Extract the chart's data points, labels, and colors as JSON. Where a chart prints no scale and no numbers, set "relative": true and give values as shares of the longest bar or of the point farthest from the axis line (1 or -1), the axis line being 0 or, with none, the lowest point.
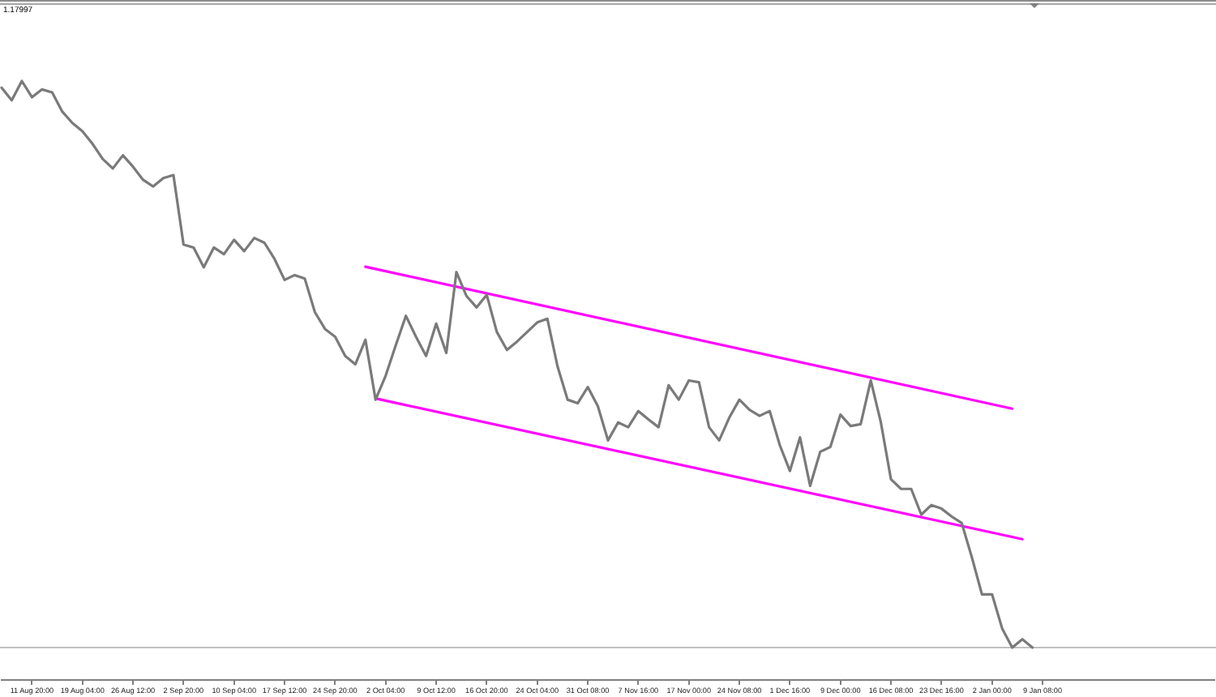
{
  "chart_data": {
    "type": "line",
    "relative": true,
    "marker": "none",
    "line_style": "solid",
    "annotations": [
      "1.17997"
    ],
    "categories": [
      null,
      null,
      null,
      "11 Aug 20:00",
      null,
      null,
      null,
      null,
      "19 Aug 04:00",
      null,
      null,
      null,
      null,
      "26 Aug 12:00",
      null,
      null,
      null,
      null,
      "2 Sep 20:00",
      null,
      null,
      null,
      null,
      "10 Sep 04:00",
      null,
      null,
      null,
      null,
      "17 Sep 12:00",
      null,
      null,
      null,
      null,
      "24 Sep 20:00",
      null,
      null,
      null,
      null,
      "2 Oct 04:00",
      null,
      null,
      null,
      null,
      "9 Oct 12:00",
      null,
      null,
      null,
      null,
      "16 Oct 20:00",
      null,
      null,
      null,
      null,
      "24 Oct 04:00",
      null,
      null,
      null,
      null,
      "31 Oct 08:00",
      null,
      null,
      null,
      null,
      "7 Nov 16:00",
      null,
      null,
      null,
      null,
      "17 Nov 00:00",
      null,
      null,
      null,
      null,
      "24 Nov 08:00",
      null,
      null,
      null,
      null,
      "1 Dec 16:00",
      null,
      null,
      null,
      null,
      "9 Dec 00:00",
      null,
      null,
      null,
      null,
      "16 Dec 08:00",
      null,
      null,
      null,
      null,
      "23 Dec 16:00",
      null,
      null,
      null,
      null,
      "2 Jan 00:00",
      null,
      null,
      null,
      null,
      "9 Jan 08:00",
      null,
      null,
      null,
      null,
      null,
      null,
      null,
      null,
      null,
      null,
      null,
      null,
      null,
      null,
      null,
      null,
      null
    ],
    "series": [
      {
        "color": "#7a7a7a",
        "values": [
          0.989,
          0.968,
          1,
          0.973,
          0.986,
          0.981,
          0.949,
          0.93,
          0.916,
          0.895,
          0.87,
          0.854,
          0.876,
          0.857,
          0.835,
          0.824,
          0.838,
          0.843,
          0.727,
          0.722,
          0.689,
          0.722,
          0.711,
          0.735,
          0.716,
          0.738,
          0.73,
          0.703,
          0.668,
          0.676,
          0.67,
          0.614,
          0.586,
          0.573,
          0.541,
          0.527,
          0.568,
          0.468,
          0.508,
          0.559,
          0.608,
          0.573,
          0.541,
          0.595,
          0.546,
          0.681,
          0.641,
          0.622,
          0.643,
          0.581,
          0.551,
          0.565,
          0.581,
          0.597,
          0.603,
          0.524,
          0.468,
          0.462,
          0.489,
          0.457,
          0.4,
          0.43,
          0.422,
          0.449,
          0.435,
          0.422,
          0.492,
          0.468,
          0.5,
          0.497,
          0.422,
          0.4,
          0.438,
          0.468,
          0.451,
          0.441,
          0.449,
          0.392,
          0.349,
          0.405,
          0.324,
          0.381,
          0.389,
          0.443,
          0.424,
          0.427,
          0.5,
          0.43,
          0.335,
          0.319,
          0.319,
          0.276,
          0.292,
          0.286,
          0.273,
          0.262,
          0.205,
          0.143,
          0.143,
          0.086,
          0.054,
          0.068,
          0.054,
          null,
          null,
          null,
          null,
          null,
          null,
          null,
          null,
          null,
          null,
          null,
          null,
          null,
          null,
          null,
          null,
          null,
          null
        ]
      },
      {
        "type": "line",
        "color": "#ff00ff",
        "values": [
          null,
          null,
          null,
          null,
          null,
          null,
          null,
          null,
          null,
          null,
          null,
          null,
          null,
          null,
          null,
          null,
          null,
          null,
          null,
          null,
          null,
          null,
          null,
          null,
          null,
          null,
          null,
          null,
          null,
          null,
          null,
          null,
          null,
          null,
          null,
          null,
          0.69,
          null,
          null,
          null,
          null,
          null,
          null,
          null,
          null,
          null,
          null,
          null,
          null,
          null,
          null,
          null,
          null,
          null,
          null,
          null,
          null,
          null,
          null,
          null,
          null,
          null,
          null,
          null,
          null,
          null,
          null,
          null,
          null,
          null,
          null,
          null,
          null,
          null,
          null,
          null,
          null,
          null,
          null,
          null,
          null,
          null,
          null,
          null,
          null,
          null,
          null,
          null,
          null,
          null,
          null,
          null,
          null,
          null,
          null,
          null,
          null,
          null,
          null,
          null,
          0.453,
          null,
          null,
          null,
          null,
          null,
          null,
          null,
          null,
          null,
          null,
          null,
          null,
          null,
          null,
          null,
          null,
          null,
          null,
          null,
          null
        ]
      },
      {
        "type": "line",
        "color": "#ff00ff",
        "values": [
          null,
          null,
          null,
          null,
          null,
          null,
          null,
          null,
          null,
          null,
          null,
          null,
          null,
          null,
          null,
          null,
          null,
          null,
          null,
          null,
          null,
          null,
          null,
          null,
          null,
          null,
          null,
          null,
          null,
          null,
          null,
          null,
          null,
          null,
          null,
          null,
          null,
          0.47,
          null,
          null,
          null,
          null,
          null,
          null,
          null,
          null,
          null,
          null,
          null,
          null,
          null,
          null,
          null,
          null,
          null,
          null,
          null,
          null,
          null,
          null,
          null,
          null,
          null,
          null,
          null,
          null,
          null,
          null,
          null,
          null,
          null,
          null,
          null,
          null,
          null,
          null,
          null,
          null,
          null,
          null,
          null,
          null,
          null,
          null,
          null,
          null,
          null,
          null,
          null,
          null,
          null,
          null,
          null,
          null,
          null,
          null,
          null,
          null,
          null,
          null,
          null,
          0.235,
          null,
          null,
          null,
          null,
          null,
          null,
          null,
          null,
          null,
          null,
          null,
          null,
          null,
          null,
          null,
          null,
          null,
          null,
          null
        ]
      }
    ],
    "ref_lines": [
      {
        "axis": "y",
        "value": 0.054,
        "color": "#c0c0c0"
      }
    ]
  }
}
